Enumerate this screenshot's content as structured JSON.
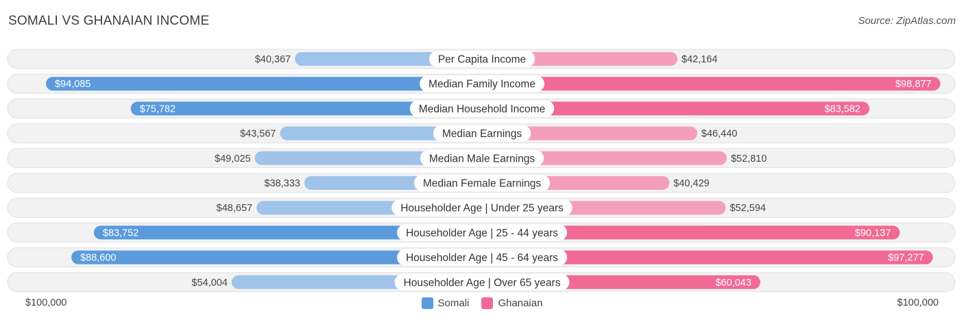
{
  "header": {
    "title": "SOMALI VS GHANAIAN INCOME",
    "source": "Source: ZipAtlas.com"
  },
  "legend": {
    "somali_label": "Somali",
    "ghanaian_label": "Ghanaian"
  },
  "axis": {
    "left_label": "$100,000",
    "right_label": "$100,000"
  },
  "colors": {
    "somali_strong": "#5b9bdc",
    "somali_light": "#9fc3e9",
    "ghanaian_strong": "#f06a95",
    "ghanaian_light": "#f59ebb",
    "row_bg": "#f2f2f2",
    "row_border": "#e0e0e0"
  },
  "chart_data": {
    "type": "bar",
    "orientation": "diverging-horizontal",
    "title": "SOMALI VS GHANAIAN INCOME",
    "xlim": [
      -100000,
      100000
    ],
    "categories": [
      "Per Capita Income",
      "Median Family Income",
      "Median Household Income",
      "Median Earnings",
      "Median Male Earnings",
      "Median Female Earnings",
      "Householder Age | Under 25 years",
      "Householder Age | 25 - 44 years",
      "Householder Age | 45 - 64 years",
      "Householder Age | Over 65 years"
    ],
    "series": [
      {
        "name": "Somali",
        "values": [
          40367,
          94085,
          75782,
          43567,
          49025,
          38333,
          48657,
          83752,
          88600,
          54004
        ],
        "labels": [
          "$40,367",
          "$94,085",
          "$75,782",
          "$43,567",
          "$49,025",
          "$38,333",
          "$48,657",
          "$83,752",
          "$88,600",
          "$54,004"
        ]
      },
      {
        "name": "Ghanaian",
        "values": [
          42164,
          98877,
          83582,
          46440,
          52810,
          40429,
          52594,
          90137,
          97277,
          60043
        ],
        "labels": [
          "$42,164",
          "$98,877",
          "$83,582",
          "$46,440",
          "$52,810",
          "$40,429",
          "$52,594",
          "$90,137",
          "$97,277",
          "$60,043"
        ]
      }
    ],
    "legend": [
      "Somali",
      "Ghanaian"
    ],
    "axis_labels": [
      "$100,000",
      "$100,000"
    ]
  }
}
